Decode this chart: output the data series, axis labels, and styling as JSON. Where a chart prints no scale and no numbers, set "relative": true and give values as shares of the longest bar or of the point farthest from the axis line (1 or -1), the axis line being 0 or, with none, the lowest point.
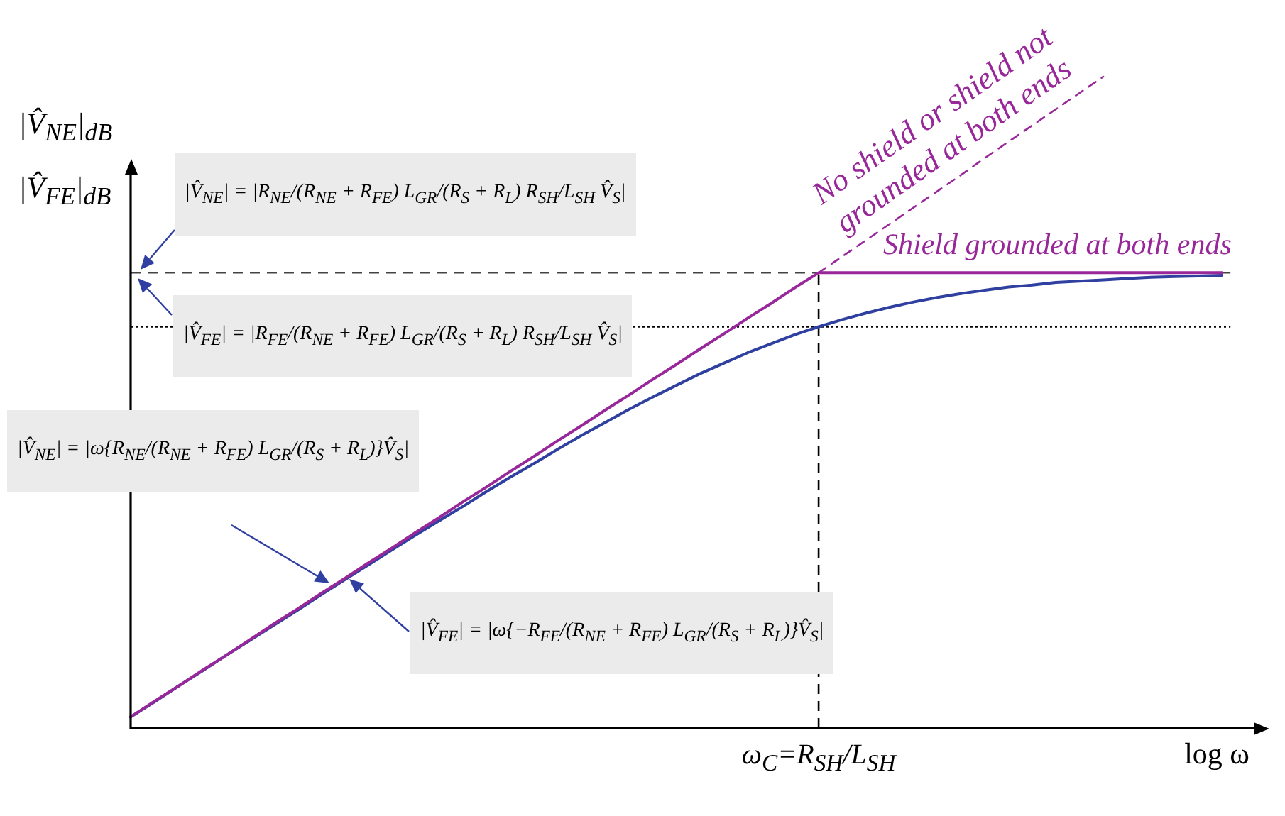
{
  "chart_data": {
    "type": "line",
    "relative": true,
    "ylabel": "|V̂$_{NE}$|$_{dB}$\n|V̂$_{FE}$|$_{dB}$",
    "xlabel": "log ω",
    "categories": [
      null,
      null,
      null,
      null,
      null,
      null,
      null,
      null,
      null,
      null,
      null,
      null,
      null,
      null,
      null,
      null,
      null,
      null,
      null,
      null,
      null,
      null,
      null,
      null,
      null,
      null,
      null,
      null,
      null,
      null,
      null,
      null,
      null,
      null,
      null,
      null,
      null,
      null,
      null,
      null,
      null,
      null,
      null,
      null,
      null,
      null,
      null,
      null,
      null
    ],
    "series": [
      {
        "name": "Shield grounded at both ends",
        "color": "#98289a",
        "values": [
          0.017,
          0.041,
          0.064,
          0.088,
          0.111,
          0.135,
          0.159,
          0.182,
          0.206,
          0.229,
          0.253,
          0.276,
          0.3,
          0.323,
          0.347,
          0.37,
          0.394,
          0.417,
          0.441,
          0.464,
          0.488,
          0.511,
          0.535,
          0.558,
          0.582,
          0.605,
          0.629,
          0.652,
          0.676,
          0.699,
          0.699,
          0.699,
          0.699,
          0.699,
          0.699,
          0.699,
          0.699,
          0.699,
          0.699,
          0.699,
          0.699,
          0.699,
          0.699,
          0.699,
          0.699,
          0.699,
          0.699,
          null,
          null
        ]
      },
      {
        "name": "No shield or shield not grounded at both ends",
        "color": "#98289a",
        "line_style": "dashed",
        "values": [
          null,
          null,
          null,
          null,
          null,
          null,
          null,
          null,
          null,
          null,
          null,
          null,
          null,
          null,
          null,
          null,
          null,
          null,
          null,
          null,
          null,
          null,
          null,
          null,
          null,
          null,
          null,
          null,
          null,
          0.699,
          0.724,
          0.749,
          0.774,
          0.799,
          0.824,
          0.849,
          0.875,
          0.9,
          0.925,
          0.95,
          0.975,
          1.0,
          null,
          null,
          null,
          null,
          null,
          null,
          null
        ]
      },
      {
        "color": "#3040a0",
        "values": [
          0.017,
          0.04,
          0.064,
          0.087,
          0.111,
          0.134,
          0.157,
          0.18,
          0.204,
          0.227,
          0.25,
          0.273,
          0.296,
          0.318,
          0.34,
          0.363,
          0.385,
          0.406,
          0.428,
          0.449,
          0.469,
          0.489,
          0.508,
          0.526,
          0.544,
          0.56,
          0.576,
          0.59,
          0.604,
          0.616,
          0.627,
          0.637,
          0.646,
          0.654,
          0.661,
          0.667,
          0.672,
          0.677,
          0.68,
          0.684,
          0.686,
          0.688,
          0.69,
          0.692,
          0.693,
          0.694,
          0.695,
          null,
          null
        ]
      }
    ],
    "ref_lines": [
      {
        "axis": "y",
        "value": 0.699,
        "color": "#444444",
        "line_style": "dashed",
        "label": "|V̂$_{NE}$| = |R$_{NE}$/(R$_{NE}$ + R$_{FE}$) L$_{GR}$/(R$_{S}$ + R$_{L}$) R$_{SH}$/L$_{SH}$ V̂$_{S}$|"
      },
      {
        "axis": "y",
        "value": 0.616,
        "color": "#000000",
        "line_style": "dotted",
        "label": "|V̂$_{FE}$| = |R$_{FE}$/(R$_{NE}$ + R$_{FE}$) L$_{GR}$/(R$_{S}$ + R$_{L}$) R$_{SH}$/L$_{SH}$ V̂$_{S}$|"
      }
    ],
    "annotations": [
      "|V̂$_{NE}$| = |ω{R$_{NE}$/(R$_{NE}$ + R$_{FE}$) L$_{GR}$/(R$_{S}$ + R$_{L}$)}V̂$_{S}$|",
      "|V̂$_{FE}$| = |ω{−R$_{FE}$/(R$_{NE}$ + R$_{FE}$) L$_{GR}$/(R$_{S}$ + R$_{L}$)}V̂$_{S}$|",
      "ω$_{C}$=R$_{SH}$/L$_{SH}$"
    ]
  }
}
